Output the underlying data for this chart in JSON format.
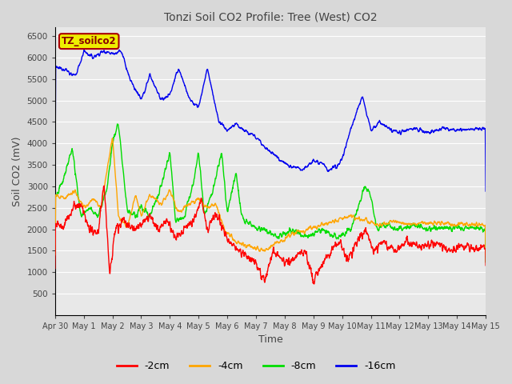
{
  "title": "Tonzi Soil CO2 Profile: Tree (West) CO2",
  "xlabel": "Time",
  "ylabel": "Soil CO2 (mV)",
  "ylim": [
    0,
    6700
  ],
  "yticks": [
    500,
    1000,
    1500,
    2000,
    2500,
    3000,
    3500,
    4000,
    4500,
    5000,
    5500,
    6000,
    6500
  ],
  "colors": {
    "red": "#ff0000",
    "orange": "#ffa500",
    "green": "#00dd00",
    "blue": "#0000ee"
  },
  "legend_labels": [
    "-2cm",
    "-4cm",
    "-8cm",
    "-16cm"
  ],
  "inset_label": "TZ_soilco2",
  "inset_color_bg": "#eeee00",
  "inset_color_border": "#aa0000",
  "inset_text_color": "#880000",
  "plot_bg_color": "#e8e8e8",
  "fig_bg_color": "#d8d8d8",
  "grid_color": "#ffffff"
}
